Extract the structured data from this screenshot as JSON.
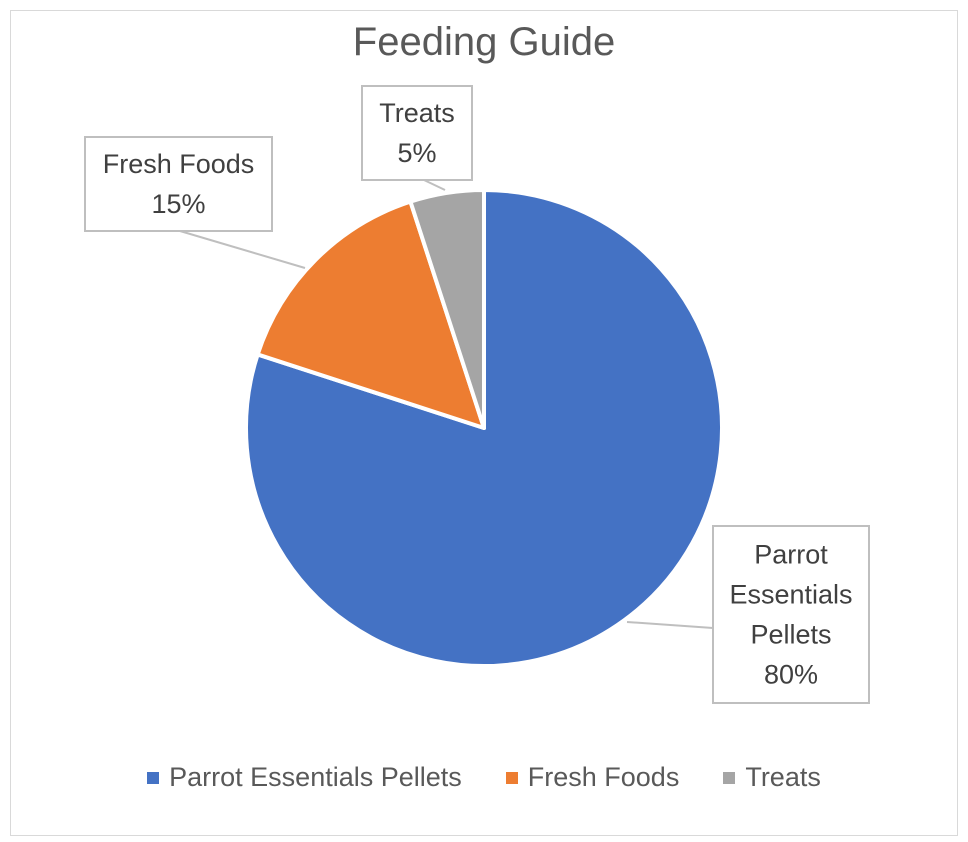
{
  "chart_data": {
    "type": "pie",
    "title": "Feeding Guide",
    "slices": [
      {
        "label": "Parrot Essentials Pellets",
        "value": 80,
        "data_label_lines": [
          "Parrot",
          "Essentials",
          "Pellets",
          "80%"
        ],
        "color": "#4472C4"
      },
      {
        "label": "Fresh Foods",
        "value": 15,
        "data_label_lines": [
          "Fresh Foods",
          "15%"
        ],
        "color": "#ED7D31"
      },
      {
        "label": "Treats",
        "value": 5,
        "data_label_lines": [
          "Treats",
          "5%"
        ],
        "color": "#A5A5A5"
      }
    ],
    "legend_position": "bottom"
  }
}
